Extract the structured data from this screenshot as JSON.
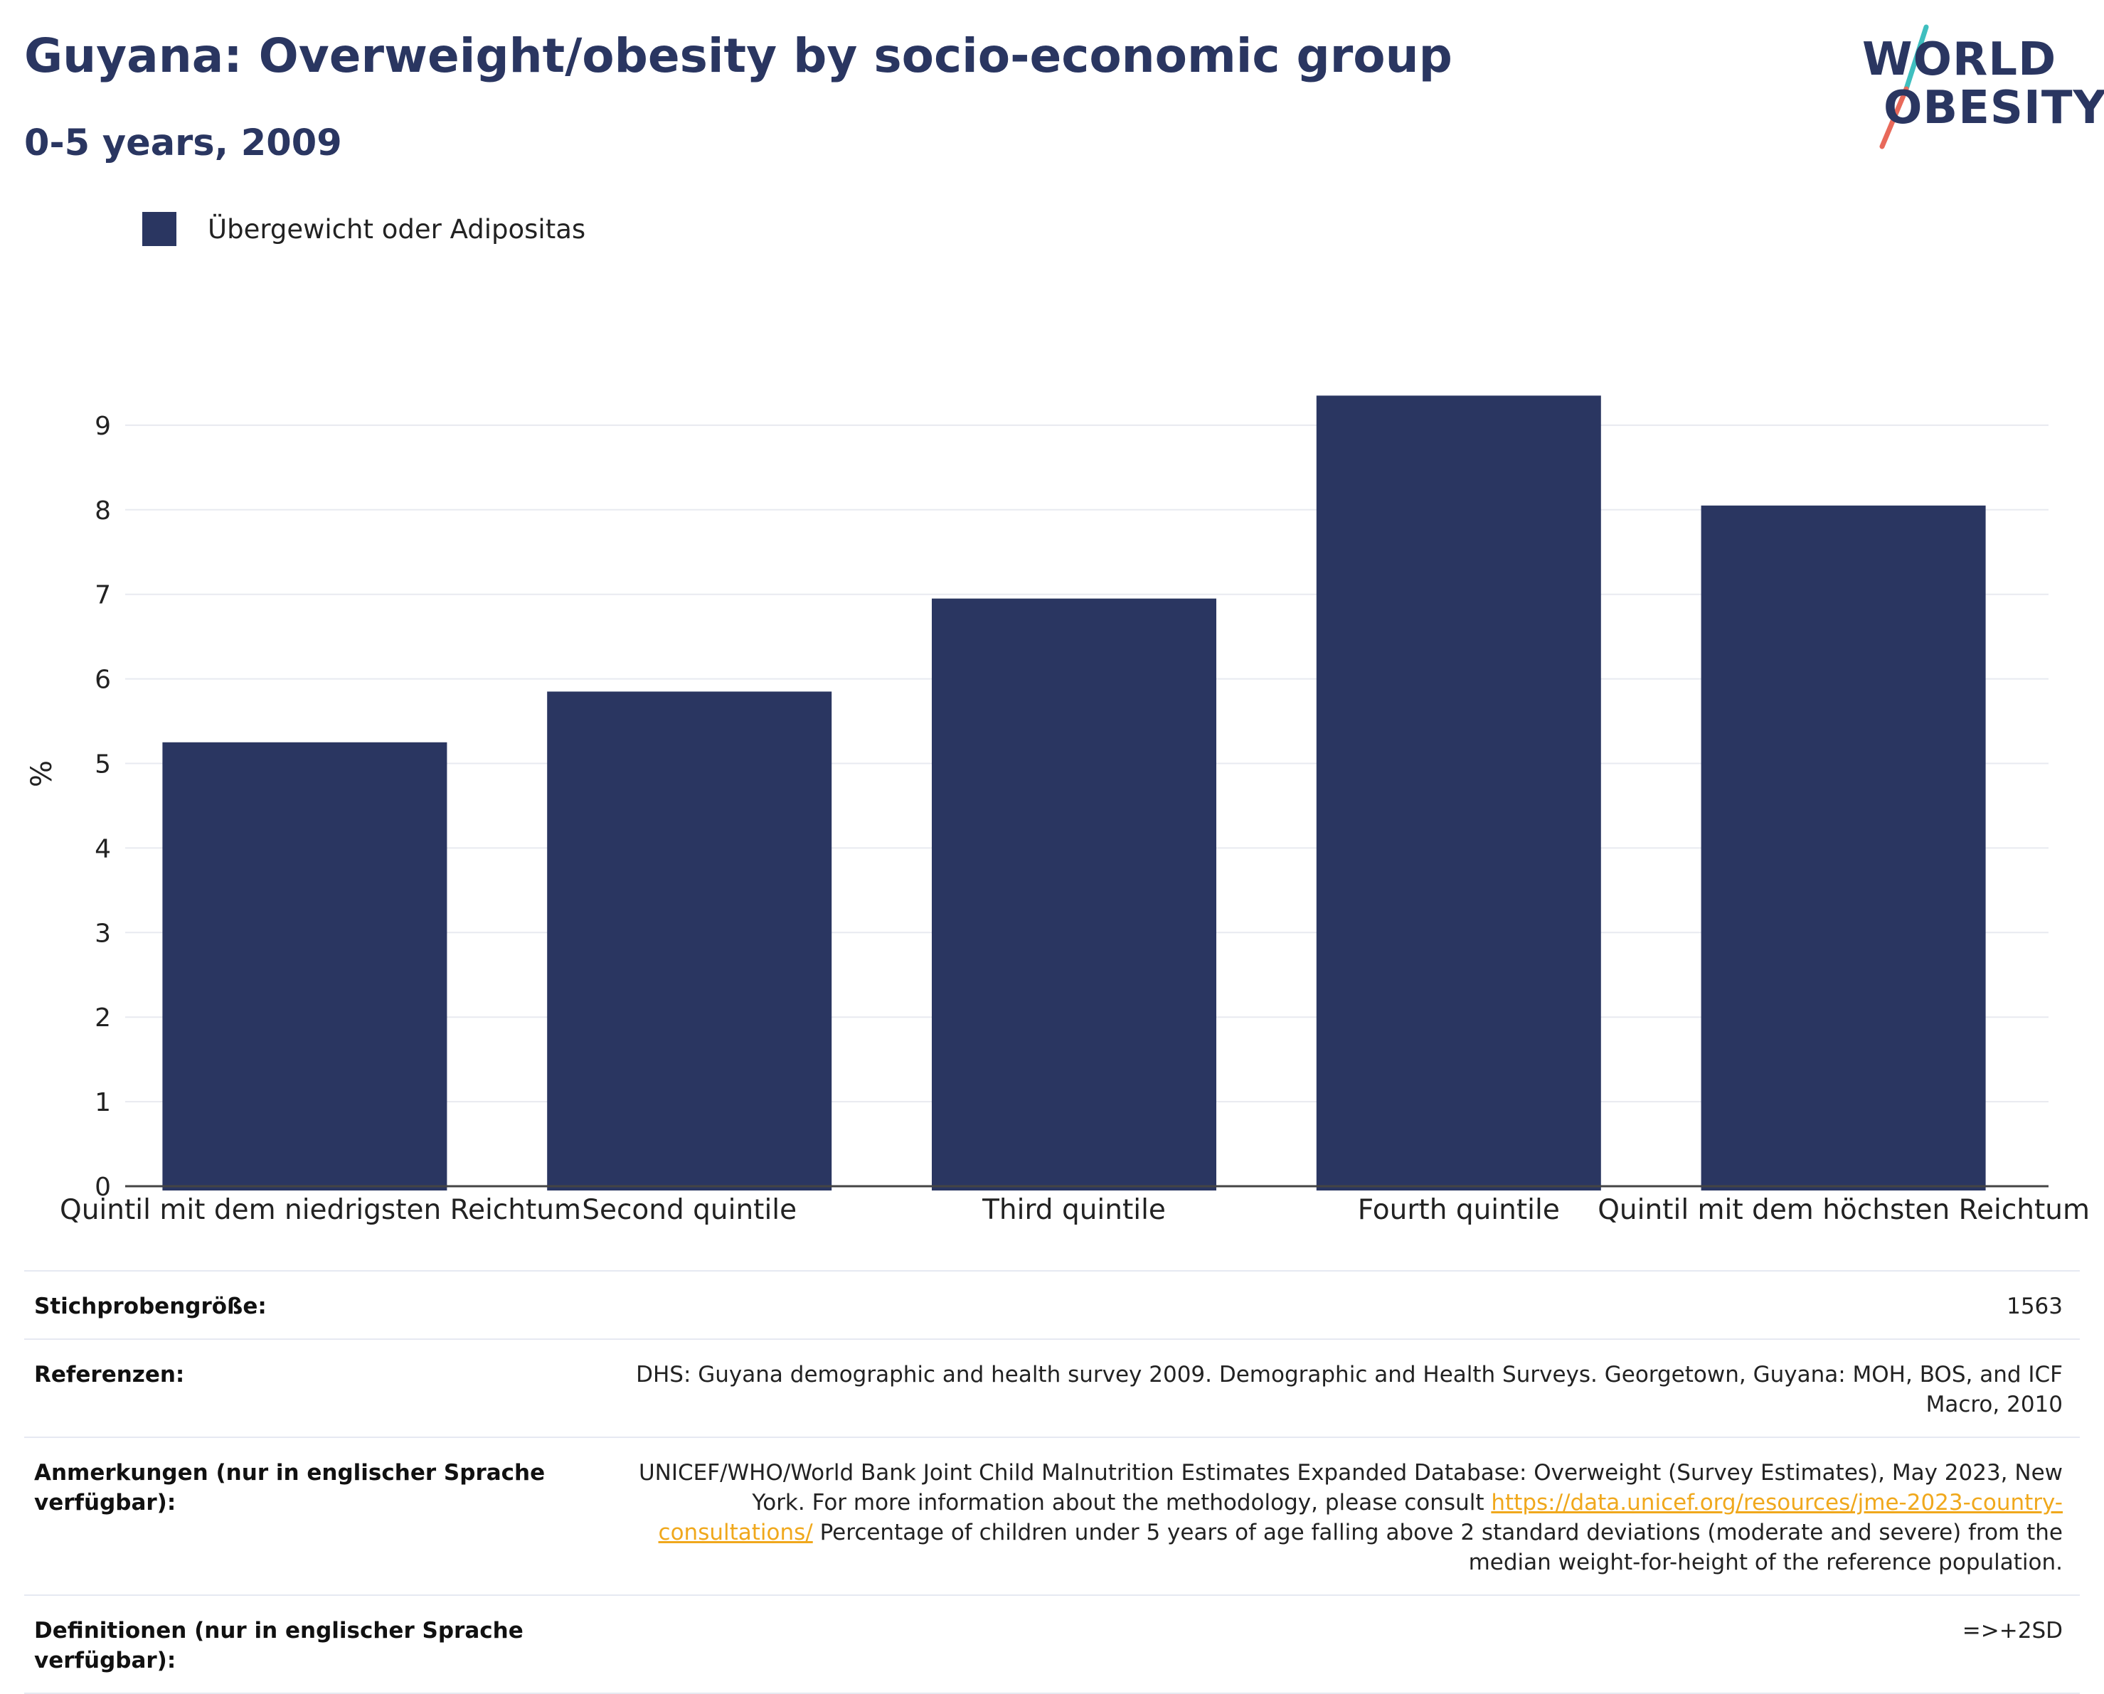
{
  "header": {
    "title": "Guyana: Overweight/obesity by socio-economic group",
    "subtitle": "0-5 years, 2009"
  },
  "logo": {
    "line1": "WORLD",
    "line2": "OBESITY",
    "colors": {
      "text": "#2a3661",
      "slash_top": "#3fbfbf",
      "slash_bottom": "#e8695a"
    }
  },
  "legend": {
    "label": "Übergewicht oder Adipositas",
    "color": "#2a3661"
  },
  "chart_data": {
    "type": "bar",
    "categories": [
      "Quintil mit dem niedrigsten Reichtum",
      "Second quintile",
      "Third quintile",
      "Fourth quintile",
      "Quintil mit dem höchsten Reichtum"
    ],
    "series": [
      {
        "name": "Übergewicht oder Adipositas",
        "values": [
          5.25,
          5.85,
          6.95,
          9.35,
          8.05
        ],
        "color": "#2a3661"
      }
    ],
    "xlabel": "",
    "ylabel": "%",
    "ylim": [
      0,
      9.5
    ],
    "yticks": [
      0,
      1,
      2,
      3,
      4,
      5,
      6,
      7,
      8,
      9
    ],
    "grid": true,
    "legend_position": "top-left"
  },
  "info": {
    "sample_size": {
      "label": "Stichprobengröße:",
      "value": "1563"
    },
    "references": {
      "label": "Referenzen:",
      "value": "DHS: Guyana demographic and health survey 2009. Demographic and Health Surveys. Georgetown, Guyana: MOH, BOS, and ICF Macro, 2010"
    },
    "notes": {
      "label": "Anmerkungen (nur in englischer Sprache verfügbar):",
      "text_before": "UNICEF/WHO/World Bank Joint Child Malnutrition Estimates Expanded Database: Overweight (Survey Estimates), May 2023, New York. For more information about the methodology, please consult ",
      "link": "https://data.unicef.org/resources/jme-2023-country-consultations/",
      "text_after": " Percentage of children under 5 years of age falling above 2 standard deviations (moderate and severe) from the median weight-for-height of the reference population."
    },
    "definitions": {
      "label": "Definitionen (nur in englischer Sprache verfügbar):",
      "value": "=>+2SD"
    }
  }
}
